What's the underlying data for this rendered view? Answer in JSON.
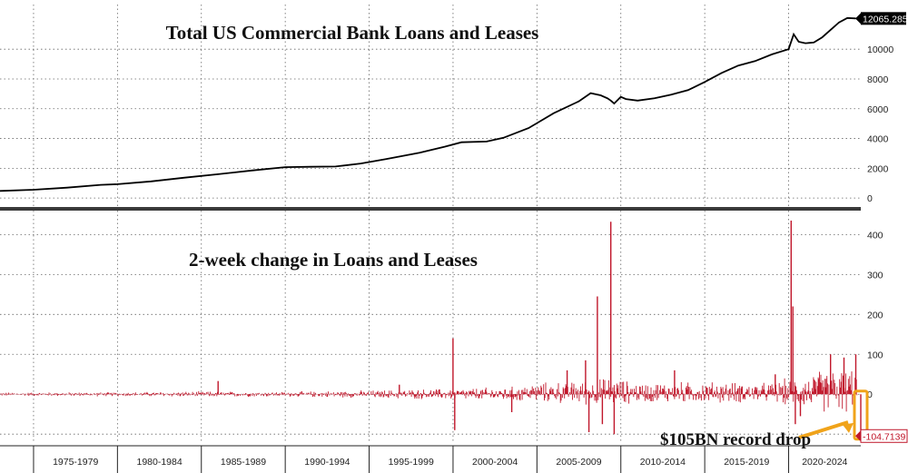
{
  "chart_data": [
    {
      "type": "line",
      "title": "Total US Commercial Bank Loans and Leases",
      "ylim": [
        -600,
        13000
      ],
      "yticks": [
        0,
        2000,
        4000,
        6000,
        8000,
        10000
      ],
      "grid": true,
      "line_color": "#000000",
      "last_value_label": "12065.285",
      "series": [
        {
          "x": [
            1973.0,
            1975.0,
            1977.0,
            1979.0,
            1980.0,
            1982.0,
            1984.0,
            1986.0,
            1988.0,
            1990.0,
            1991.5,
            1993.0,
            1994.5,
            1996.0,
            1998.0,
            1999.5,
            2000.5,
            2002.0,
            2003.0,
            2004.5,
            2006.0,
            2007.5,
            2008.2,
            2008.8,
            2009.2,
            2009.4,
            2009.6,
            2010.0,
            2010.3,
            2011.0,
            2012.0,
            2013.0,
            2014.0,
            2015.0,
            2016.0,
            2017.0,
            2018.0,
            2019.0,
            2020.0,
            2020.3,
            2020.6,
            2021.0,
            2021.5,
            2022.0,
            2022.5,
            2023.0,
            2023.5,
            2024.0
          ],
          "y": [
            480,
            560,
            700,
            890,
            930,
            1120,
            1370,
            1600,
            1850,
            2080,
            2100,
            2120,
            2320,
            2620,
            3050,
            3450,
            3750,
            3800,
            4050,
            4700,
            5700,
            6500,
            7050,
            6900,
            6700,
            6550,
            6350,
            6800,
            6650,
            6550,
            6700,
            6950,
            7250,
            7800,
            8400,
            8900,
            9200,
            9650,
            10000,
            11000,
            10500,
            10400,
            10450,
            10800,
            11300,
            11800,
            12100,
            12065
          ]
        }
      ]
    },
    {
      "type": "bar",
      "title": "2-week change in Loans and Leases",
      "ylim": [
        -120,
        460
      ],
      "yticks": [
        -100,
        0,
        100,
        200,
        300,
        400
      ],
      "grid": true,
      "bar_color": "#c0162a",
      "last_value_label": "-104.7139",
      "annotation": "$105BN record drop",
      "xlim": [
        1973.0,
        2024.3
      ],
      "x_ticks": [
        "1975-1979",
        "1980-1984",
        "1985-1989",
        "1990-1994",
        "1995-1999",
        "2000-2004",
        "2005-2009",
        "2010-2014",
        "2015-2019",
        "2020-2024"
      ],
      "amplitude_profile": {
        "x": [
          1973,
          1980,
          1985,
          1990,
          1994,
          1997,
          2000,
          2004,
          2006,
          2008,
          2009.5,
          2011,
          2014,
          2016,
          2019,
          2020,
          2021,
          2022,
          2024
        ],
        "amp": [
          5,
          6,
          8,
          7,
          10,
          13,
          16,
          22,
          30,
          35,
          40,
          28,
          30,
          30,
          27,
          40,
          45,
          60,
          65
        ]
      },
      "spikes": [
        {
          "x": 1986.0,
          "value": 33
        },
        {
          "x": 1996.8,
          "value": 24
        },
        {
          "x": 2000.0,
          "value": 140
        },
        {
          "x": 2000.1,
          "value": -90
        },
        {
          "x": 2003.5,
          "value": -45
        },
        {
          "x": 2006.8,
          "value": 60
        },
        {
          "x": 2007.9,
          "value": 85
        },
        {
          "x": 2008.1,
          "value": -95
        },
        {
          "x": 2008.6,
          "value": 245
        },
        {
          "x": 2008.9,
          "value": -75
        },
        {
          "x": 2009.4,
          "value": 432
        },
        {
          "x": 2009.6,
          "value": -100
        },
        {
          "x": 2013.2,
          "value": 60
        },
        {
          "x": 2019.2,
          "value": 50
        },
        {
          "x": 2020.15,
          "value": 435
        },
        {
          "x": 2020.25,
          "value": 220
        },
        {
          "x": 2020.4,
          "value": -75
        },
        {
          "x": 2020.7,
          "value": -55
        },
        {
          "x": 2022.5,
          "value": 100
        },
        {
          "x": 2023.3,
          "value": 92
        },
        {
          "x": 2024.0,
          "value": 100
        },
        {
          "x": 2024.3,
          "value": -104.7
        }
      ]
    }
  ]
}
